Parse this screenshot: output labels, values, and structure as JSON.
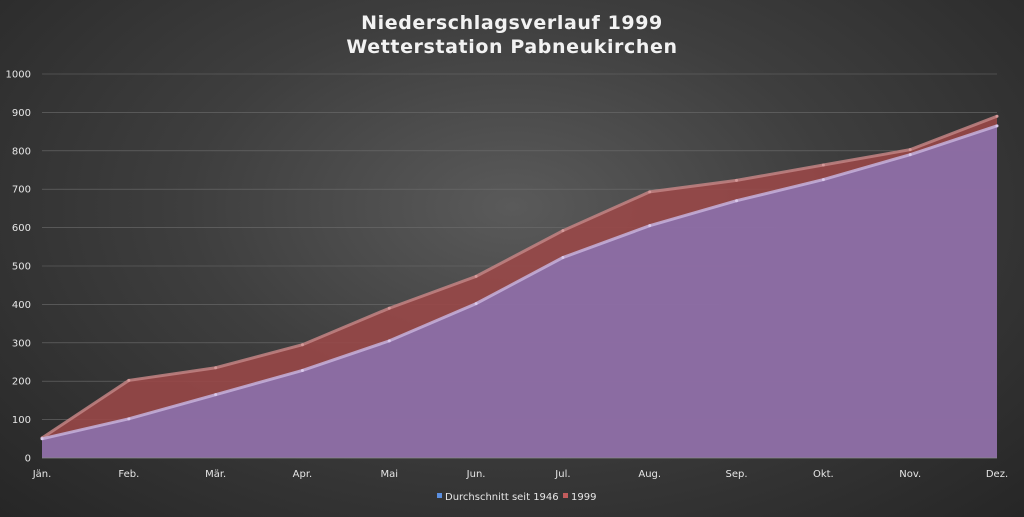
{
  "chart_data": {
    "type": "area",
    "title": [
      "Niederschlagsverlauf 1999",
      "Wetterstation Pabneukirchen"
    ],
    "categories": [
      "Jän.",
      "Feb.",
      "Mär.",
      "Apr.",
      "Mai",
      "Jun.",
      "Jul.",
      "Aug.",
      "Sep.",
      "Okt.",
      "Nov.",
      "Dez."
    ],
    "ylim": [
      0,
      1000
    ],
    "yticks": [
      0,
      100,
      200,
      300,
      400,
      500,
      600,
      700,
      800,
      900,
      1000
    ],
    "grid": true,
    "legend_position": "bottom",
    "series": [
      {
        "name": "Durchschnitt seit 1946",
        "values": [
          50,
          102,
          165,
          228,
          305,
          402,
          522,
          605,
          670,
          725,
          790,
          865
        ],
        "color": "#8b6fa8"
      },
      {
        "name": "1999",
        "values": [
          52,
          202,
          235,
          295,
          390,
          473,
          592,
          693,
          723,
          763,
          803,
          890
        ],
        "color": "#9b4848"
      }
    ]
  }
}
